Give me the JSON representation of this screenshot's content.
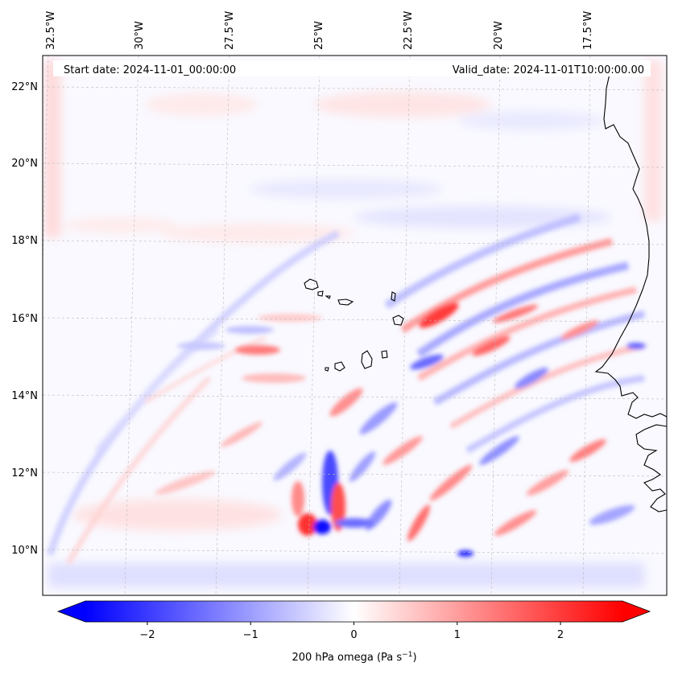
{
  "map": {
    "start_label": "Start date: 2024-11-01_00:00:00",
    "valid_label": "Valid_date: 2024-11-01T10:00:00.00",
    "lon_labels": [
      "32.5°W",
      "30°W",
      "27.5°W",
      "25°W",
      "22.5°W",
      "20°W",
      "17.5°W"
    ],
    "lat_labels": [
      "22°N",
      "20°N",
      "18°N",
      "16°N",
      "14°N",
      "12°N",
      "10°N"
    ],
    "colormap": "bwr",
    "coastline_color": "#000000",
    "gridline_color": "#bbbbbb"
  },
  "colorbar": {
    "label_prefix": "200 hPa omega (Pa s",
    "label_exp": "−1",
    "label_suffix": ")",
    "ticks": [
      "−2",
      "−1",
      "0",
      "1",
      "2"
    ],
    "tick_values": [
      -2,
      -1,
      0,
      1,
      2
    ],
    "range": [
      -2.6,
      2.6
    ],
    "extend": "both",
    "min_color": "#0000ff",
    "mid_color": "#ffffff",
    "max_color": "#ff0000"
  }
}
